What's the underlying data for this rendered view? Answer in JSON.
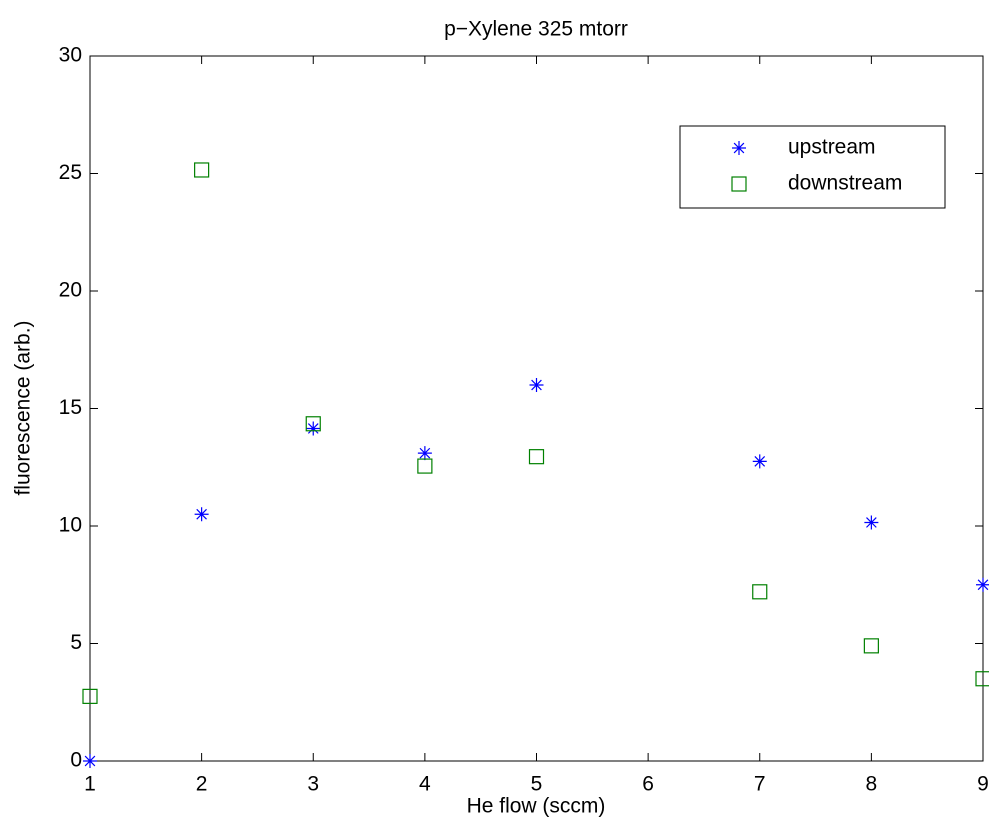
{
  "chart_data": {
    "type": "scatter",
    "title": "p−Xylene 325 mtorr",
    "x_label": "He flow (sccm)",
    "y_label": "fluorescence (arb.)",
    "xlim": [
      1,
      9
    ],
    "ylim": [
      0,
      30
    ],
    "xticks": [
      1,
      2,
      3,
      4,
      5,
      6,
      7,
      8,
      9
    ],
    "yticks": [
      0,
      5,
      10,
      15,
      20,
      25,
      30
    ],
    "grid": false,
    "legend_position": "upper right",
    "series": [
      {
        "name": "upstream",
        "color": "#0000ff",
        "marker": "asterisk",
        "x": [
          1,
          2,
          3,
          4,
          5,
          7,
          8,
          9
        ],
        "values": [
          0,
          10.5,
          14.15,
          13.1,
          16.0,
          12.75,
          10.15,
          7.5
        ]
      },
      {
        "name": "downstream",
        "color": "#008000",
        "marker": "square",
        "x": [
          1,
          2,
          3,
          4,
          5,
          7,
          8,
          9
        ],
        "values": [
          2.75,
          25.15,
          14.35,
          12.55,
          12.95,
          7.2,
          4.9,
          3.5
        ]
      }
    ]
  }
}
